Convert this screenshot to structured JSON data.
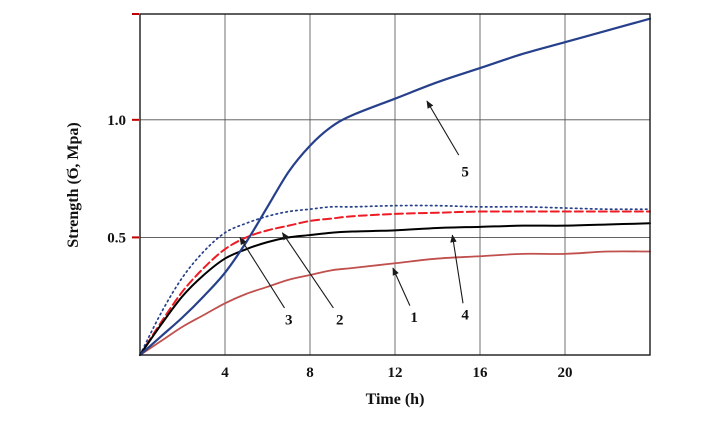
{
  "chart_data": {
    "type": "line",
    "title": "",
    "xlabel": "Time (h)",
    "ylabel": "Strength (Ϭ, Mpa)",
    "xlim": [
      0,
      24
    ],
    "ylim": [
      0,
      1.45
    ],
    "xticks": [
      4,
      8,
      12,
      16,
      20
    ],
    "yticks": [
      0.5,
      1.0
    ],
    "ytick_marks": [
      0.5,
      1.0,
      1.45
    ],
    "grid": true,
    "legend": "none",
    "colors": {
      "grid": "#4d4d4d",
      "frame": "#1a1a1a",
      "ytick_mark": "#c00000",
      "arrow": "#1a1a1a",
      "blue": "#27408b",
      "red_dashed": "#ed1c24",
      "salmon": "#c0504d",
      "black": "#000000"
    },
    "x": [
      0,
      1,
      2,
      3,
      4,
      5,
      6,
      7,
      8,
      9,
      10,
      12,
      14,
      16,
      18,
      20,
      22,
      24
    ],
    "series": [
      {
        "name": "1",
        "color": "#c0504d",
        "dash": "none",
        "width": 1.8,
        "values": [
          0,
          0.06,
          0.12,
          0.17,
          0.22,
          0.26,
          0.29,
          0.32,
          0.34,
          0.36,
          0.37,
          0.39,
          0.41,
          0.42,
          0.43,
          0.43,
          0.44,
          0.44
        ]
      },
      {
        "name": "2",
        "color": "#ed1c24",
        "dash": "8,4",
        "width": 2,
        "values": [
          0,
          0.14,
          0.27,
          0.37,
          0.45,
          0.5,
          0.53,
          0.55,
          0.57,
          0.58,
          0.59,
          0.6,
          0.605,
          0.61,
          0.61,
          0.61,
          0.61,
          0.61
        ]
      },
      {
        "name": "3",
        "color": "#27408b",
        "dash": "1.5,3.5",
        "width": 1.7,
        "values": [
          0,
          0.18,
          0.33,
          0.44,
          0.52,
          0.56,
          0.59,
          0.61,
          0.62,
          0.63,
          0.63,
          0.635,
          0.635,
          0.63,
          0.63,
          0.625,
          0.62,
          0.62
        ]
      },
      {
        "name": "4",
        "color": "#000000",
        "dash": "none",
        "width": 2,
        "values": [
          0,
          0.13,
          0.25,
          0.34,
          0.41,
          0.45,
          0.48,
          0.5,
          0.51,
          0.52,
          0.525,
          0.53,
          0.54,
          0.545,
          0.55,
          0.55,
          0.555,
          0.56
        ]
      },
      {
        "name": "5",
        "color": "#27408b",
        "dash": "none",
        "width": 2.2,
        "values": [
          0,
          0.08,
          0.16,
          0.25,
          0.35,
          0.48,
          0.63,
          0.78,
          0.89,
          0.97,
          1.02,
          1.09,
          1.16,
          1.22,
          1.28,
          1.33,
          1.38,
          1.43
        ]
      }
    ],
    "annotations": [
      {
        "label": "3",
        "lx": 7.0,
        "ly": 0.13,
        "x1": 6.8,
        "y1": 0.2,
        "x2": 4.7,
        "y2": 0.5
      },
      {
        "label": "2",
        "lx": 9.4,
        "ly": 0.13,
        "x1": 9.1,
        "y1": 0.2,
        "x2": 6.7,
        "y2": 0.52
      },
      {
        "label": "1",
        "lx": 12.9,
        "ly": 0.14,
        "x1": 12.7,
        "y1": 0.21,
        "x2": 11.9,
        "y2": 0.37
      },
      {
        "label": "4",
        "lx": 15.3,
        "ly": 0.15,
        "x1": 15.2,
        "y1": 0.22,
        "x2": 14.7,
        "y2": 0.51
      },
      {
        "label": "5",
        "lx": 15.3,
        "ly": 0.76,
        "x1": 15.0,
        "y1": 0.85,
        "x2": 13.5,
        "y2": 1.08
      }
    ]
  }
}
